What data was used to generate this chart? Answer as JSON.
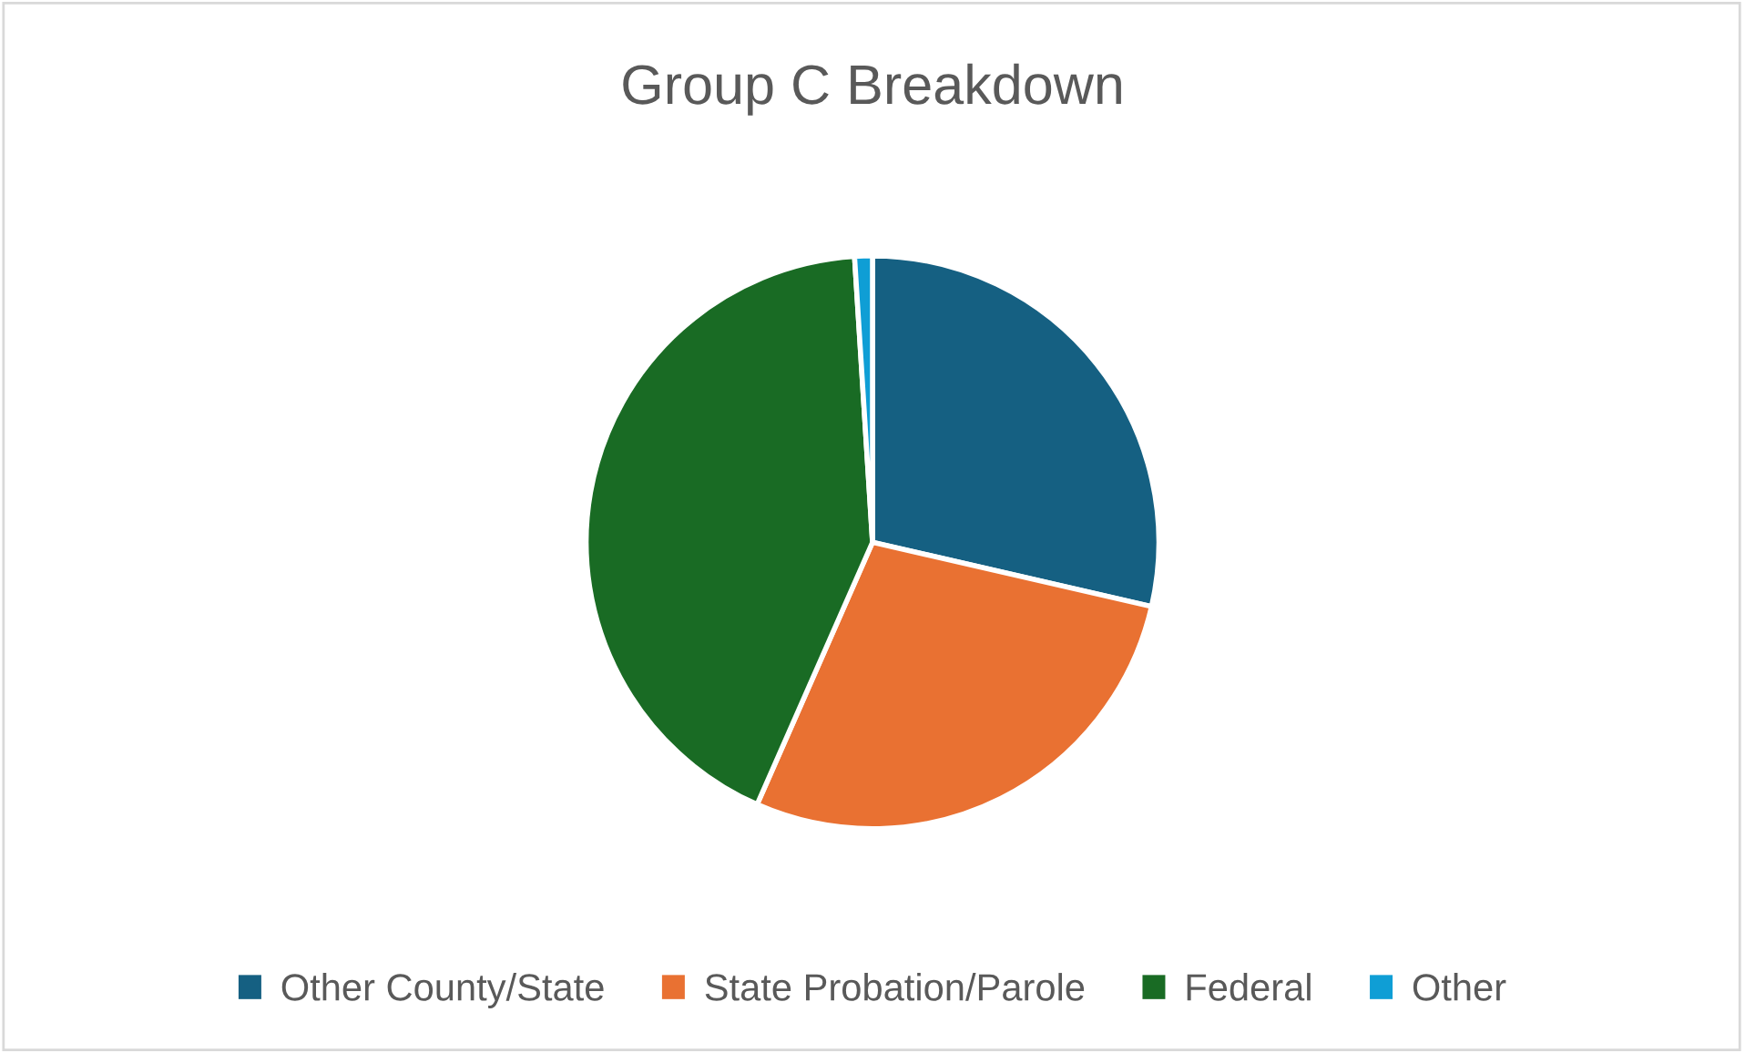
{
  "chart_data": {
    "type": "pie",
    "title": "Group C Breakdown",
    "categories": [
      "Other County/State",
      "State Probation/Parole",
      "Federal",
      "Other"
    ],
    "values": [
      28.6,
      28.0,
      42.4,
      1.0
    ],
    "colors": [
      "#156082",
      "#e97132",
      "#196b24",
      "#0f9ed5"
    ],
    "legend": "bottom"
  }
}
